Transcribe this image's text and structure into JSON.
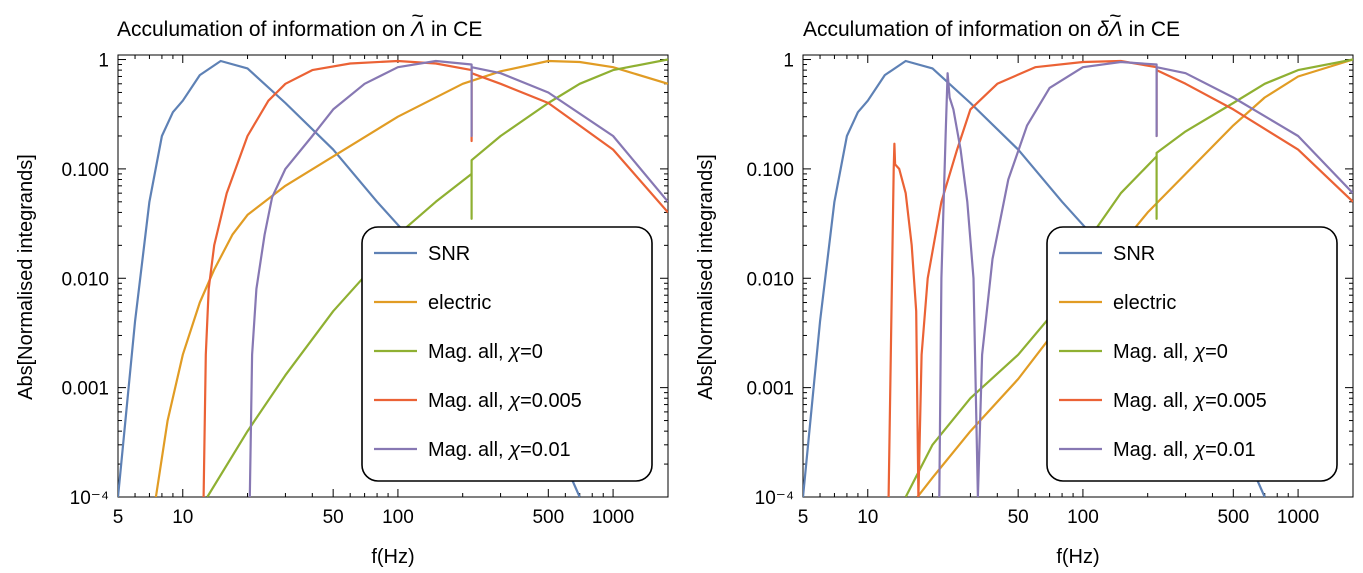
{
  "charts": [
    {
      "title_prefix": "Acculumation of information on ",
      "title_symbol": "Λ",
      "title_suffix": " in CE",
      "title_delta": ""
    },
    {
      "title_prefix": "Acculumation of information on ",
      "title_symbol": "Λ",
      "title_suffix": " in CE",
      "title_delta": "δ"
    }
  ],
  "chart_data": [
    {
      "type": "line",
      "title": "Acculumation of information on Λ̃ in CE",
      "xlabel": "f(Hz)",
      "ylabel": "Abs[Normalised integrands]",
      "xscale": "log",
      "yscale": "log",
      "xlim": [
        5,
        1800
      ],
      "ylim": [
        0.0001,
        1.1
      ],
      "x_ticks": [
        "5",
        "10",
        "50",
        "100",
        "500",
        "1000"
      ],
      "y_ticks": [
        "10⁻⁴",
        "0.001",
        "0.010",
        "0.100",
        "1"
      ],
      "legend_position": "bottom-right",
      "series": [
        {
          "name": "SNR",
          "color": "#5E81B5",
          "points": [
            [
              5,
              0.0001
            ],
            [
              6,
              0.004
            ],
            [
              7,
              0.05
            ],
            [
              8,
              0.2
            ],
            [
              9,
              0.33
            ],
            [
              10,
              0.42
            ],
            [
              12,
              0.72
            ],
            [
              15,
              0.97
            ],
            [
              20,
              0.83
            ],
            [
              30,
              0.4
            ],
            [
              50,
              0.15
            ],
            [
              80,
              0.05
            ],
            [
              110,
              0.025
            ],
            [
              200,
              0.006
            ],
            [
              400,
              0.0012
            ],
            [
              700,
              0.0001
            ]
          ]
        },
        {
          "name": "electric",
          "color": "#E19C24",
          "points": [
            [
              7.5,
              0.0001
            ],
            [
              8.5,
              0.0005
            ],
            [
              10,
              0.002
            ],
            [
              12,
              0.006
            ],
            [
              14,
              0.012
            ],
            [
              17,
              0.025
            ],
            [
              20,
              0.038
            ],
            [
              30,
              0.07
            ],
            [
              50,
              0.13
            ],
            [
              100,
              0.3
            ],
            [
              200,
              0.6
            ],
            [
              300,
              0.78
            ],
            [
              500,
              0.97
            ],
            [
              700,
              0.95
            ],
            [
              1000,
              0.85
            ],
            [
              1800,
              0.6
            ]
          ]
        },
        {
          "name": "Mag. all, χ=0",
          "color": "#8FB032",
          "points": [
            [
              13,
              0.0001
            ],
            [
              20,
              0.0004
            ],
            [
              30,
              0.0013
            ],
            [
              50,
              0.005
            ],
            [
              80,
              0.014
            ],
            [
              100,
              0.025
            ],
            [
              150,
              0.05
            ],
            [
              220,
              0.09
            ],
            [
              220,
              0.035
            ],
            [
              220,
              0.12
            ],
            [
              300,
              0.2
            ],
            [
              500,
              0.4
            ],
            [
              700,
              0.6
            ],
            [
              1000,
              0.8
            ],
            [
              1800,
              1.0
            ]
          ]
        },
        {
          "name": "Mag. all, χ=0.005",
          "color": "#EB6235",
          "points": [
            [
              12.5,
              0.0001
            ],
            [
              12.8,
              0.002
            ],
            [
              13.2,
              0.008
            ],
            [
              14,
              0.02
            ],
            [
              16,
              0.06
            ],
            [
              20,
              0.2
            ],
            [
              25,
              0.42
            ],
            [
              30,
              0.6
            ],
            [
              40,
              0.8
            ],
            [
              60,
              0.92
            ],
            [
              100,
              0.97
            ],
            [
              150,
              0.92
            ],
            [
              220,
              0.8
            ],
            [
              220,
              0.18
            ],
            [
              220,
              0.75
            ],
            [
              300,
              0.6
            ],
            [
              500,
              0.4
            ],
            [
              1000,
              0.15
            ],
            [
              1800,
              0.04
            ]
          ]
        },
        {
          "name": "Mag. all, χ=0.01",
          "color": "#8778B3",
          "points": [
            [
              20.5,
              0.0001
            ],
            [
              21,
              0.002
            ],
            [
              22,
              0.008
            ],
            [
              24,
              0.025
            ],
            [
              26,
              0.055
            ],
            [
              30,
              0.1
            ],
            [
              40,
              0.2
            ],
            [
              50,
              0.35
            ],
            [
              70,
              0.6
            ],
            [
              100,
              0.85
            ],
            [
              150,
              0.97
            ],
            [
              220,
              0.9
            ],
            [
              220,
              0.2
            ],
            [
              220,
              0.85
            ],
            [
              300,
              0.75
            ],
            [
              500,
              0.5
            ],
            [
              1000,
              0.2
            ],
            [
              1800,
              0.05
            ]
          ]
        }
      ]
    },
    {
      "type": "line",
      "title": "Acculumation of information on δΛ̃ in CE",
      "xlabel": "f(Hz)",
      "ylabel": "Abs[Normalised integrands]",
      "xscale": "log",
      "yscale": "log",
      "xlim": [
        5,
        1800
      ],
      "ylim": [
        0.0001,
        1.1
      ],
      "x_ticks": [
        "5",
        "10",
        "50",
        "100",
        "500",
        "1000"
      ],
      "y_ticks": [
        "10⁻⁴",
        "0.001",
        "0.010",
        "0.100",
        "1"
      ],
      "legend_position": "bottom-right",
      "series": [
        {
          "name": "SNR",
          "color": "#5E81B5",
          "points": [
            [
              5,
              0.0001
            ],
            [
              6,
              0.004
            ],
            [
              7,
              0.05
            ],
            [
              8,
              0.2
            ],
            [
              9,
              0.33
            ],
            [
              10,
              0.42
            ],
            [
              12,
              0.72
            ],
            [
              15,
              0.97
            ],
            [
              20,
              0.83
            ],
            [
              30,
              0.4
            ],
            [
              50,
              0.15
            ],
            [
              80,
              0.05
            ],
            [
              110,
              0.025
            ],
            [
              200,
              0.006
            ],
            [
              400,
              0.0012
            ],
            [
              700,
              0.0001
            ]
          ]
        },
        {
          "name": "electric",
          "color": "#E19C24",
          "points": [
            [
              17,
              0.0001
            ],
            [
              20,
              0.00015
            ],
            [
              30,
              0.0004
            ],
            [
              50,
              0.0012
            ],
            [
              80,
              0.004
            ],
            [
              100,
              0.007
            ],
            [
              150,
              0.02
            ],
            [
              200,
              0.04
            ],
            [
              300,
              0.09
            ],
            [
              500,
              0.25
            ],
            [
              700,
              0.45
            ],
            [
              1000,
              0.7
            ],
            [
              1800,
              1.0
            ]
          ]
        },
        {
          "name": "Mag. all, χ=0",
          "color": "#8FB032",
          "points": [
            [
              15,
              0.0001
            ],
            [
              20,
              0.0003
            ],
            [
              30,
              0.0008
            ],
            [
              50,
              0.002
            ],
            [
              80,
              0.006
            ],
            [
              110,
              0.025
            ],
            [
              150,
              0.06
            ],
            [
              220,
              0.13
            ],
            [
              220,
              0.035
            ],
            [
              220,
              0.14
            ],
            [
              300,
              0.22
            ],
            [
              500,
              0.4
            ],
            [
              700,
              0.6
            ],
            [
              1000,
              0.8
            ],
            [
              1800,
              1.0
            ]
          ]
        },
        {
          "name": "Mag. all, χ=0.005",
          "color": "#EB6235",
          "points": [
            [
              12.5,
              0.0001
            ],
            [
              12.8,
              0.002
            ],
            [
              13.2,
              0.1
            ],
            [
              13.3,
              0.17
            ],
            [
              13.4,
              0.11
            ],
            [
              14,
              0.1
            ],
            [
              15,
              0.06
            ],
            [
              16,
              0.02
            ],
            [
              16.8,
              0.005
            ],
            [
              17.2,
              0.0001
            ],
            [
              17.8,
              0.002
            ],
            [
              19,
              0.01
            ],
            [
              22,
              0.05
            ],
            [
              26,
              0.15
            ],
            [
              30,
              0.35
            ],
            [
              40,
              0.6
            ],
            [
              60,
              0.85
            ],
            [
              100,
              0.95
            ],
            [
              150,
              0.97
            ],
            [
              220,
              0.85
            ],
            [
              220,
              0.2
            ],
            [
              220,
              0.8
            ],
            [
              300,
              0.6
            ],
            [
              500,
              0.35
            ],
            [
              1000,
              0.15
            ],
            [
              1800,
              0.05
            ]
          ]
        },
        {
          "name": "Mag. all, χ=0.01",
          "color": "#8778B3",
          "points": [
            [
              21.5,
              0.0001
            ],
            [
              22,
              0.01
            ],
            [
              23,
              0.2
            ],
            [
              23.5,
              0.75
            ],
            [
              24,
              0.45
            ],
            [
              25,
              0.35
            ],
            [
              27,
              0.15
            ],
            [
              29,
              0.05
            ],
            [
              31,
              0.01
            ],
            [
              32.5,
              0.0001
            ],
            [
              34,
              0.002
            ],
            [
              38,
              0.015
            ],
            [
              45,
              0.08
            ],
            [
              55,
              0.25
            ],
            [
              70,
              0.55
            ],
            [
              100,
              0.85
            ],
            [
              150,
              0.95
            ],
            [
              220,
              0.9
            ],
            [
              220,
              0.2
            ],
            [
              220,
              0.85
            ],
            [
              300,
              0.75
            ],
            [
              500,
              0.45
            ],
            [
              1000,
              0.2
            ],
            [
              1800,
              0.06
            ]
          ]
        }
      ]
    }
  ]
}
